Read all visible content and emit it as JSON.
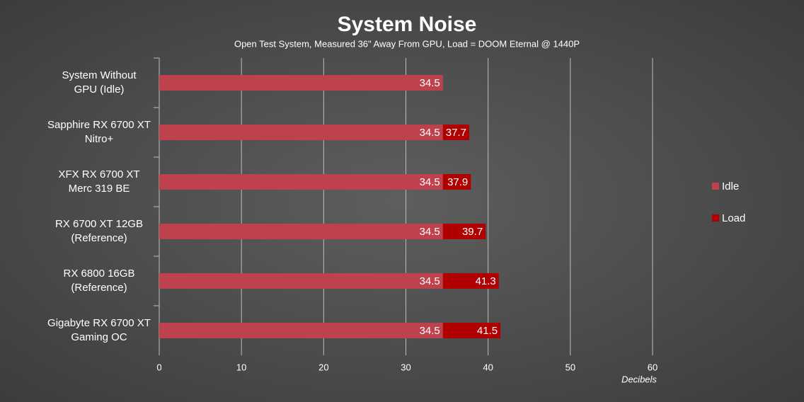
{
  "chart_data": {
    "type": "overlap_barh",
    "title": "System Noise",
    "subtitle": "Open Test System, Measured 36\" Away From GPU, Load = DOOM Eternal @ 1440P",
    "x_label": "Decibels",
    "categories": [
      "System Without\nGPU (Idle)",
      "Sapphire RX 6700 XT\nNitro+",
      "XFX RX 6700 XT\nMerc 319 BE",
      "RX 6700 XT 12GB\n(Reference)",
      "RX 6800 16GB\n(Reference)",
      "Gigabyte RX 6700 XT\nGaming OC"
    ],
    "series": [
      {
        "name": "Idle",
        "color": "#be424d",
        "values": [
          34.5,
          34.5,
          34.5,
          34.5,
          34.5,
          34.5
        ]
      },
      {
        "name": "Load",
        "color": "#b00000",
        "values": [
          null,
          37.7,
          37.9,
          39.7,
          41.3,
          41.5
        ]
      }
    ],
    "xlim": [
      0,
      60
    ],
    "xticks": [
      0,
      10,
      20,
      30,
      40,
      50,
      60
    ],
    "grid": true,
    "legend": "right"
  }
}
